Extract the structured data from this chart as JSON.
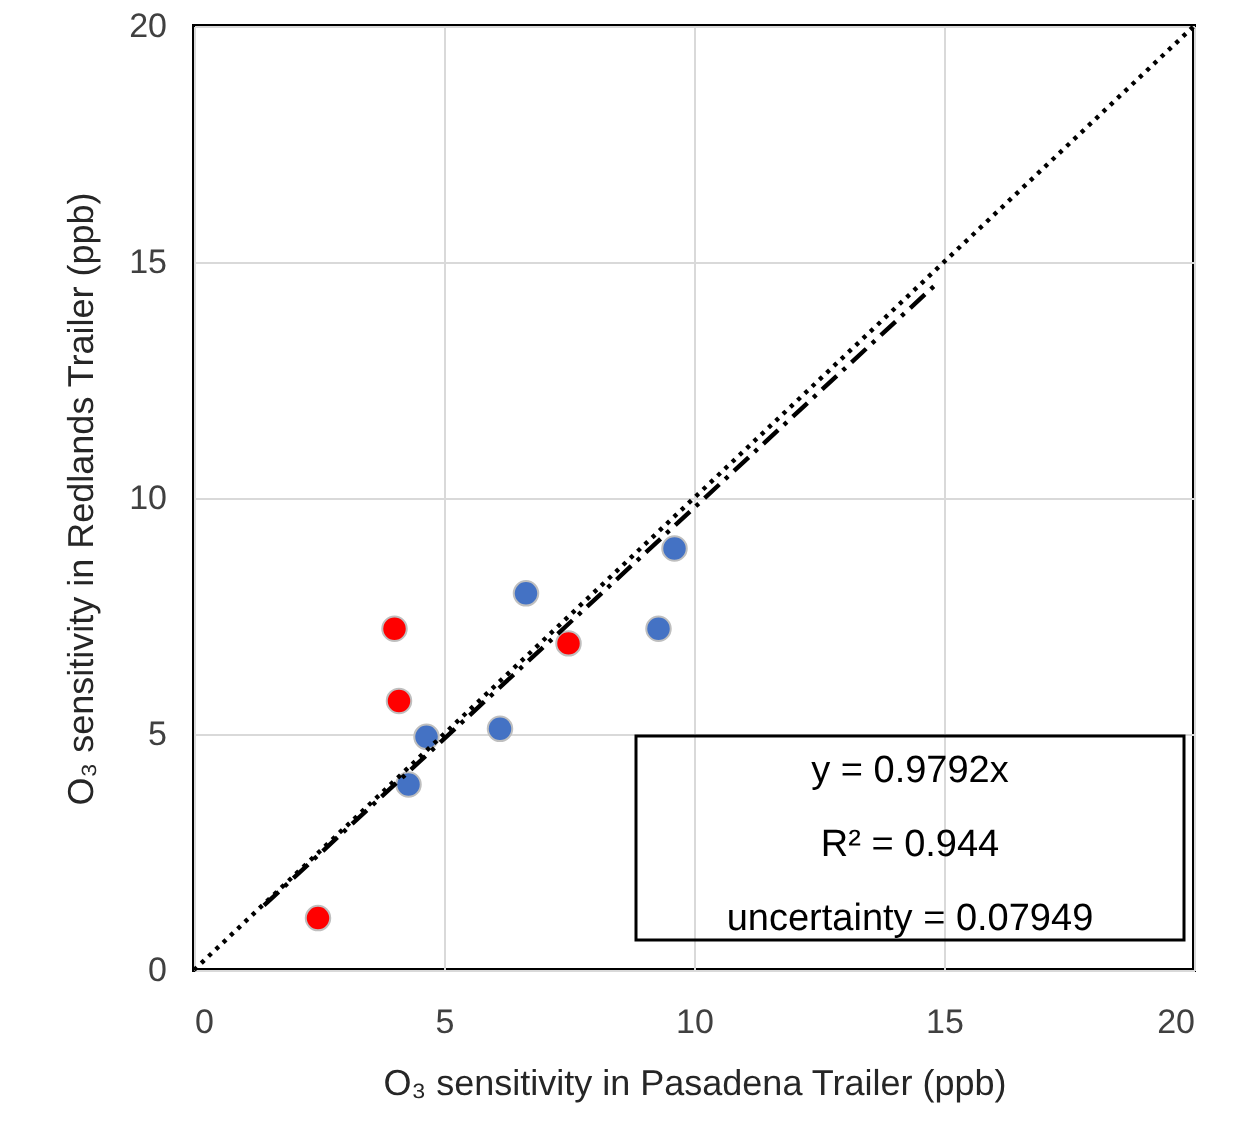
{
  "chart_data": {
    "type": "scatter",
    "xlabel": "O₃ sensitivity in Pasadena Trailer (ppb)",
    "ylabel": "O₃ sensitivity in Redlands Trailer (ppb)",
    "xlim": [
      0,
      20
    ],
    "ylim": [
      0,
      20
    ],
    "xticks": [
      0,
      5,
      10,
      15,
      20
    ],
    "yticks": [
      0,
      5,
      10,
      15,
      20
    ],
    "grid": true,
    "series": [
      {
        "type": "scatter",
        "marker": "circle",
        "color": "#ff0000",
        "x": [
          2.48,
          4.01,
          4.1,
          7.49
        ],
        "values": [
          1.1,
          7.23,
          5.7,
          6.92
        ]
      },
      {
        "type": "scatter",
        "marker": "circle",
        "color": "#4472c4",
        "x": [
          4.65,
          4.29,
          6.12,
          6.64,
          9.29,
          9.61
        ],
        "values": [
          4.94,
          3.93,
          5.11,
          7.98,
          7.23,
          8.93
        ]
      },
      {
        "type": "line",
        "color": "#000000",
        "line_style": "dotted",
        "x": [
          0,
          20
        ],
        "values": [
          0,
          20
        ]
      },
      {
        "type": "line",
        "color": "#000000",
        "line_style": "dashed",
        "x": [
          1.4,
          14.8
        ],
        "values": [
          1.37,
          14.49
        ]
      }
    ],
    "annotations": [
      "y = 0.9792x",
      "R² = 0.944",
      "uncertainty = 0.07949"
    ]
  }
}
